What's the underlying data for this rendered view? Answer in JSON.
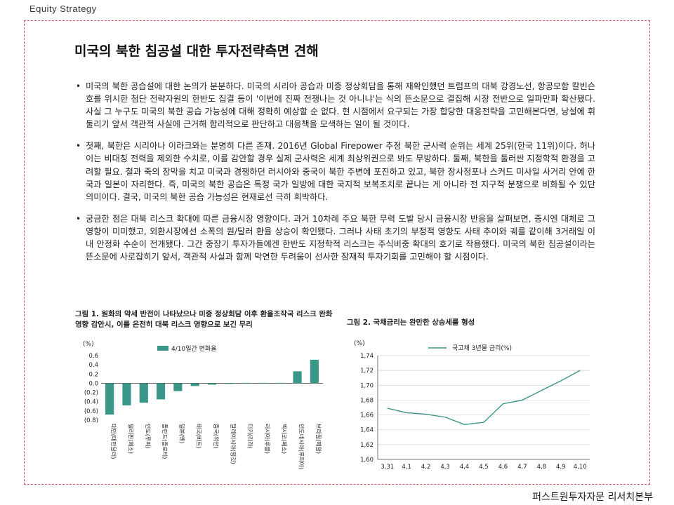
{
  "header": {
    "label": "Equity Strategy"
  },
  "title": "미국의 북한 침공설 대한 투자전략측면 견해",
  "paragraphs": [
    "미국의 북한 공습설에 대한 논의가 분분하다. 미국의 시리아 공습과 미중 정상회담을 통해 재확인했던 트럼프의 대북 강경노선, 항공모함 칼빈슨호를 위시한 첨단 전략자원의 한반도 집결 등이 '이번에 진짜 전쟁나는 것 아니냐'는 식의 뜬소문으로 결집해 시장 전반으로 일파만파 확산됐다. 사실 그 누구도 미국의 북한 공습 가능성에 대해 정확히 예상할 순 없다. 현 시점에서 요구되는 가장 합당한 대응전략을 고민해본다면, 낭설에 휘둘리기 앞서 객관적 사실에 근거해 합리적으로 판단하고 대응책을 모색하는 일이 될 것이다.",
    "첫째, 북한은 시리아나 이라크와는 분명히 다른 존재. 2016년 Global Firepower 추정 북한 군사력 순위는 세계 25위(한국 11위)이다. 허나 이는 비대칭 전력을 제외한 수치로, 이를 감안할 경우 실제 군사력은 세계 최상위권으로 봐도 무방하다. 둘째, 북한을 둘러싼 지정학적 환경을 고려할 필요. 철과 죽의 장막을 치고 미국과 경쟁하던 러시아와 중국이 북한 주변에 포진하고 있고, 북한 장사정포나 스커드 미사일 사거리 안에 한국과 일본이 자리한다. 즉, 미국의 북한 공습은 특정 국가 일방에 대한 국지적 보복조치로 끝나는 게 아니라 전 지구적 분쟁으로 비화될 수 있단 의미이다. 결국, 미국의 북한 공습 가능성은 현재로선 극히 희박하다.",
    "궁금한 점은 대북 리스크 확대에 따른 금융시장 영향이다. 과거 10차례 주요 북한 무력 도발 당시 금융시장 반응을 살펴보면, 증시엔 대체로 그 영향이 미미했고, 외환시장에선 소폭의 원/달러 환율 상승이 확인됐다. 그러나 사태 초기의 부정적 영향도 사태 추이와 궤를 같이해 3거래일 이내 안정화 수순이 전개됐다. 그간 중장기 투자가들에겐 한반도 지정학적 리스크는 주식비중 확대의 호기로 작용했다. 미국의 북한 침공설이라는 뜬소문에 사로잡히기 앞서, 객관적 사실과 함께 막연한 두려움이 선사한 잠재적 투자기회를 고민해야 할 시점이다."
  ],
  "figures": {
    "fig1": {
      "title": "그림 1. 원화의 약세 반전이 나타났으나 미중 정상회담 이후 환율조작국 리스크 완화 영향 감안시, 이를 온전히 대북 리스크 영향으로 보긴 무리"
    },
    "fig2": {
      "title": "그림 2. 국채금리는 완만한 상승세를 형성"
    }
  },
  "chart_data": [
    {
      "type": "bar",
      "title": "",
      "unit_label": "(%)",
      "categories": [
        "대만(대만달러)",
        "필리핀(페소)",
        "인도(루피)",
        "폴란드(즐로티)",
        "일본(엔)",
        "태국(바트)",
        "중국(위안)",
        "말레이시아(링깃)",
        "터키(리라)",
        "러시아(루블)",
        "멕시코(페소)",
        "인도네시아(루피아)",
        "브라질(헤알)"
      ],
      "series": [
        {
          "name": "4/10일간 변화율",
          "values": [
            -0.68,
            -0.48,
            -0.42,
            -0.35,
            -0.17,
            -0.06,
            -0.03,
            -0.01,
            0.01,
            0.01,
            0.01,
            0.26,
            0.51
          ]
        }
      ],
      "ylim": [
        -0.8,
        0.6
      ],
      "yticks": [
        "0.6",
        "0.4",
        "0.2",
        "0.0",
        "(0.2)",
        "(0.4)",
        "(0.6)",
        "(0.8)"
      ],
      "color": "#3a9688",
      "legend": "top-left"
    },
    {
      "type": "line",
      "title": "",
      "unit_label": "(%)",
      "x": [
        "3,31",
        "4,1",
        "4,2",
        "4,3",
        "4,4",
        "4,5",
        "4,6",
        "4,7",
        "4,8",
        "4,9",
        "4,10"
      ],
      "series": [
        {
          "name": "국고채 3년물 금리(%)",
          "values": [
            1.669,
            1.663,
            1.661,
            1.657,
            1.647,
            1.65,
            1.675,
            1.68,
            1.693,
            1.706,
            1.72
          ]
        }
      ],
      "ylim": [
        1.6,
        1.74
      ],
      "yticks": [
        "1,74",
        "1,72",
        "1,70",
        "1,68",
        "1,66",
        "1,64",
        "1,62",
        "1,60"
      ],
      "color": "#3a9688",
      "grid": "horizontal",
      "legend": "top-left"
    }
  ],
  "footer": {
    "label": "퍼스트원투자자문 리서치본부"
  }
}
